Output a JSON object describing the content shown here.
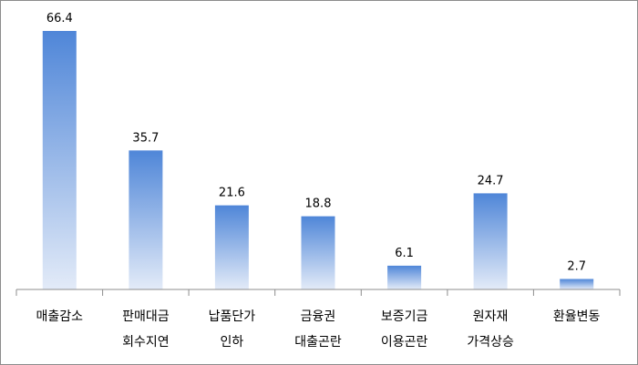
{
  "chart_data": {
    "type": "bar",
    "categories": [
      [
        "매출감소"
      ],
      [
        "판매대금",
        "회수지연"
      ],
      [
        "납품단가",
        "인하"
      ],
      [
        "금융권",
        "대출곤란"
      ],
      [
        "보증기금",
        "이용곤란"
      ],
      [
        "원자재",
        "가격상승"
      ],
      [
        "환율변동"
      ]
    ],
    "values": [
      66.4,
      35.7,
      21.6,
      18.8,
      6.1,
      24.7,
      2.7
    ],
    "data_labels": [
      "66.4",
      "35.7",
      "21.6",
      "18.8",
      "6.1",
      "24.7",
      "2.7"
    ],
    "title": "",
    "xlabel": "",
    "ylabel": "",
    "ylim": [
      0,
      70
    ],
    "grid": false,
    "legend": "none",
    "colors": {
      "bar_top": "#4f86d8",
      "bar_bottom": "#e3ebf8",
      "axis": "#8c8c8c"
    }
  }
}
